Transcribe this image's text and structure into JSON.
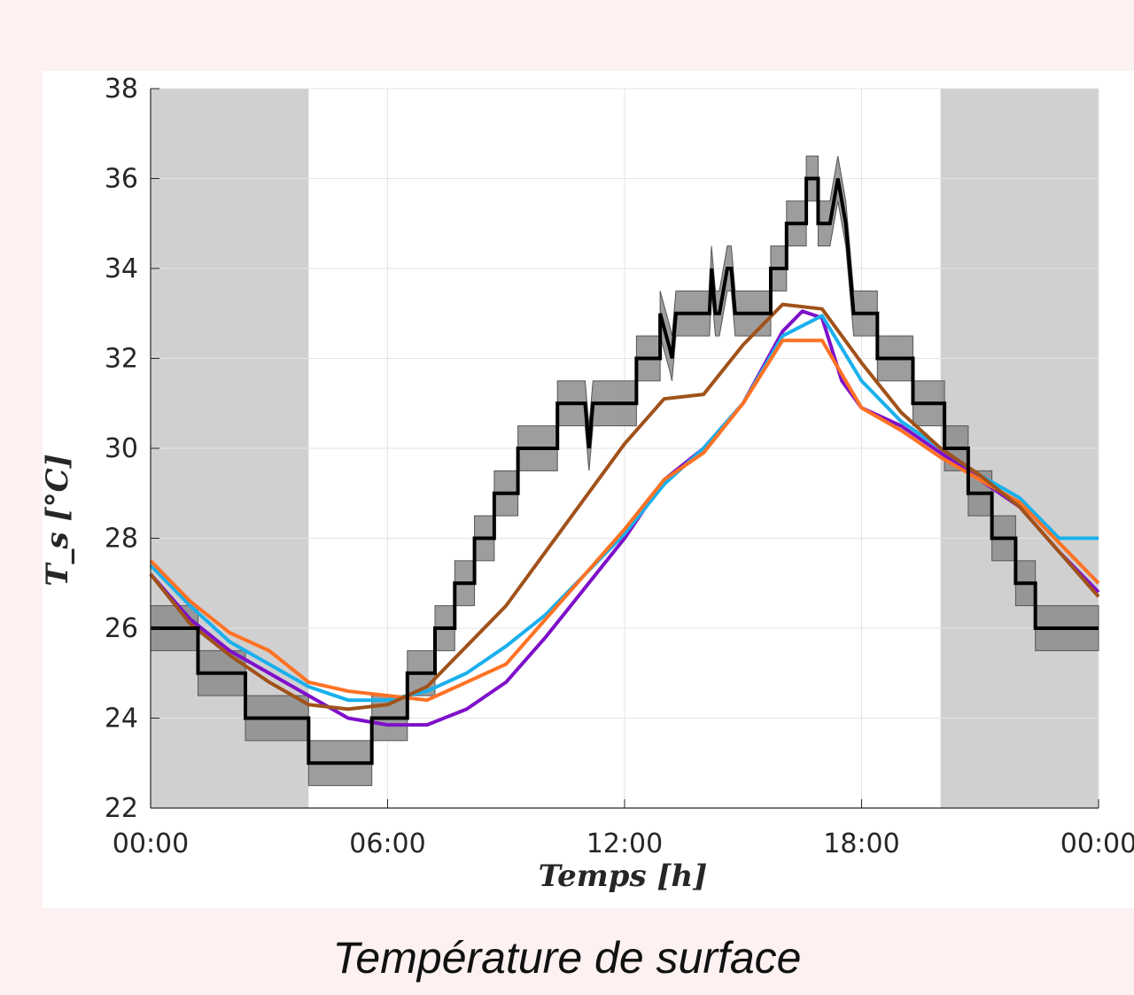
{
  "caption": "Température de surface",
  "chart_data": {
    "type": "line",
    "title": "",
    "xlabel": "Temps [h]",
    "ylabel": "T_s [°C]",
    "xlim": [
      0,
      24
    ],
    "ylim": [
      22,
      38
    ],
    "x_ticks": [
      0,
      6,
      12,
      18,
      24
    ],
    "x_tick_labels": [
      "00:00",
      "06:00",
      "12:00",
      "18:00",
      "00:00"
    ],
    "y_ticks": [
      22,
      24,
      26,
      28,
      30,
      32,
      34,
      36,
      38
    ],
    "y_tick_labels": [
      "22",
      "24",
      "26",
      "28",
      "30",
      "32",
      "34",
      "36",
      "38"
    ],
    "grid": true,
    "night_shading": [
      [
        0,
        4
      ],
      [
        20,
        24
      ]
    ],
    "colors": {
      "night": "#d0d0d0",
      "measured": "#000000",
      "band": "#8c8c8c",
      "purple": "#7e10c9",
      "cyan": "#1ab0ec",
      "orange": "#ff7224",
      "brown": "#a0521a"
    },
    "measured": {
      "x": [
        0,
        1.2,
        1.2,
        2.4,
        2.4,
        4,
        4,
        5.6,
        5.6,
        6.5,
        6.5,
        7.2,
        7.2,
        7.7,
        7.7,
        8.2,
        8.2,
        8.7,
        8.7,
        9.3,
        9.3,
        10.3,
        10.3,
        11.0,
        11.1,
        11.2,
        11.3,
        11.4,
        11.4,
        12.3,
        12.3,
        12.9,
        12.9,
        13.15,
        13.2,
        13.3,
        13.4,
        13.6,
        13.6,
        14.15,
        14.2,
        14.3,
        14.4,
        14.6,
        14.7,
        14.8,
        14.9,
        15.0,
        15.0,
        15.7,
        15.7,
        16.1,
        16.1,
        16.6,
        16.6,
        16.9,
        16.9,
        17.2,
        17.4,
        17.6,
        17.8,
        17.8,
        18.4,
        18.4,
        19.3,
        19.3,
        20.1,
        20.1,
        20.7,
        20.7,
        21.3,
        21.3,
        21.9,
        21.9,
        22.4,
        22.4,
        23.0,
        23.0,
        23.5,
        23.5,
        24
      ],
      "y": [
        26,
        26,
        25,
        25,
        24,
        24,
        23,
        23,
        24,
        24,
        25,
        25,
        26,
        26,
        27,
        27,
        28,
        28,
        29,
        29,
        30,
        30,
        31,
        31,
        30,
        31,
        31,
        31,
        31,
        31,
        32,
        32,
        33,
        32.2,
        32,
        33,
        33,
        33,
        33,
        33,
        34,
        33,
        33,
        34,
        34,
        33,
        33,
        33,
        33,
        33,
        34,
        34,
        35,
        35,
        36,
        36,
        35,
        35,
        36,
        35,
        33,
        33,
        33,
        32,
        32,
        31,
        31,
        30,
        30,
        29,
        29,
        28,
        28,
        27,
        27,
        26,
        26,
        26,
        26,
        26,
        26
      ],
      "band_half_width": 0.5
    },
    "series": [
      {
        "color_key": "purple",
        "x": [
          0,
          1,
          2,
          3,
          4,
          5,
          6,
          7,
          8,
          9,
          10,
          11,
          12,
          13,
          14,
          15,
          16,
          16.5,
          17,
          17.5,
          18,
          19,
          20,
          21,
          22,
          23,
          24
        ],
        "y": [
          27.2,
          26.2,
          25.5,
          25.0,
          24.5,
          24.0,
          23.85,
          23.85,
          24.2,
          24.8,
          25.8,
          26.9,
          28.0,
          29.3,
          30.0,
          31.0,
          32.6,
          33.05,
          32.9,
          31.5,
          30.9,
          30.5,
          29.9,
          29.3,
          28.7,
          27.7,
          26.8
        ]
      },
      {
        "color_key": "cyan",
        "x": [
          0,
          1,
          2,
          3,
          4,
          5,
          6,
          7,
          8,
          9,
          10,
          11,
          12,
          13,
          14,
          15,
          16,
          17,
          18,
          19,
          20,
          21,
          22,
          23,
          24
        ],
        "y": [
          27.4,
          26.5,
          25.7,
          25.2,
          24.7,
          24.4,
          24.4,
          24.6,
          25.0,
          25.6,
          26.3,
          27.2,
          28.1,
          29.2,
          30.0,
          31.0,
          32.5,
          32.95,
          31.5,
          30.6,
          30.0,
          29.4,
          28.9,
          28.0,
          28.0
        ]
      },
      {
        "color_key": "orange",
        "x": [
          0,
          1,
          2,
          3,
          4,
          5,
          6,
          7,
          8,
          9,
          10,
          11,
          12,
          13,
          14,
          15,
          16,
          17,
          18,
          19,
          20,
          21,
          22,
          23,
          24
        ],
        "y": [
          27.5,
          26.6,
          25.9,
          25.5,
          24.8,
          24.6,
          24.5,
          24.4,
          24.8,
          25.2,
          26.2,
          27.2,
          28.2,
          29.3,
          29.9,
          31.0,
          32.4,
          32.4,
          30.9,
          30.4,
          29.8,
          29.3,
          28.8,
          27.9,
          27.0
        ]
      },
      {
        "color_key": "brown",
        "x": [
          0,
          1,
          2,
          3,
          4,
          5,
          6,
          7,
          8,
          9,
          10,
          11,
          12,
          13,
          14,
          15,
          16,
          17,
          18,
          19,
          20,
          21,
          22,
          23,
          24
        ],
        "y": [
          27.2,
          26.1,
          25.4,
          24.8,
          24.3,
          24.2,
          24.3,
          24.7,
          25.6,
          26.5,
          27.7,
          28.9,
          30.1,
          31.1,
          31.2,
          32.3,
          33.2,
          33.1,
          31.9,
          30.8,
          30.0,
          29.4,
          28.7,
          27.7,
          26.7
        ]
      }
    ]
  }
}
